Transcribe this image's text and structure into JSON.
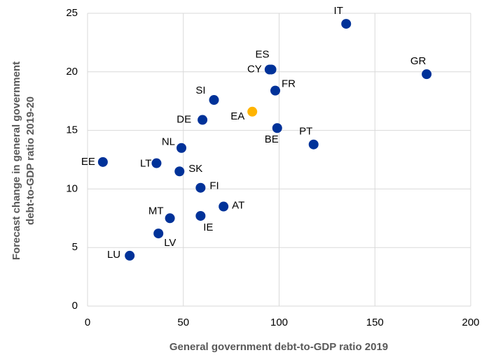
{
  "chart_data": {
    "type": "scatter",
    "xlabel": "General government debt-to-GDP ratio 2019",
    "ylabel": [
      "Forecast change in general government",
      "debt-to-GDP ratio 2019-20"
    ],
    "labels": [
      "IT",
      "GR",
      "ES",
      "CY",
      "FR",
      "SI",
      "EA",
      "DE",
      "BE",
      "PT",
      "NL",
      "EE",
      "LT",
      "SK",
      "FI",
      "AT",
      "IE",
      "MT",
      "LV",
      "LU"
    ],
    "x": [
      135,
      177,
      96,
      95,
      98,
      66,
      86,
      60,
      99,
      118,
      49,
      8,
      36,
      48,
      59,
      71,
      59,
      43,
      37,
      22
    ],
    "y": [
      24.1,
      19.8,
      20.2,
      20.2,
      18.4,
      17.6,
      16.6,
      15.9,
      15.2,
      13.8,
      13.5,
      12.3,
      12.2,
      11.5,
      10.1,
      8.5,
      7.7,
      7.5,
      6.2,
      4.3
    ],
    "colors": [
      "#003299",
      "#003299",
      "#003299",
      "#003299",
      "#003299",
      "#003299",
      "#ffb400",
      "#003299",
      "#003299",
      "#003299",
      "#003299",
      "#003299",
      "#003299",
      "#003299",
      "#003299",
      "#003299",
      "#003299",
      "#003299",
      "#003299",
      "#003299"
    ],
    "xlim": [
      0,
      200
    ],
    "xticks": [
      0,
      50,
      100,
      150,
      200
    ],
    "ylim": [
      0,
      25
    ],
    "yticks": [
      0,
      5,
      10,
      15,
      20,
      25
    ],
    "grid": true
  }
}
